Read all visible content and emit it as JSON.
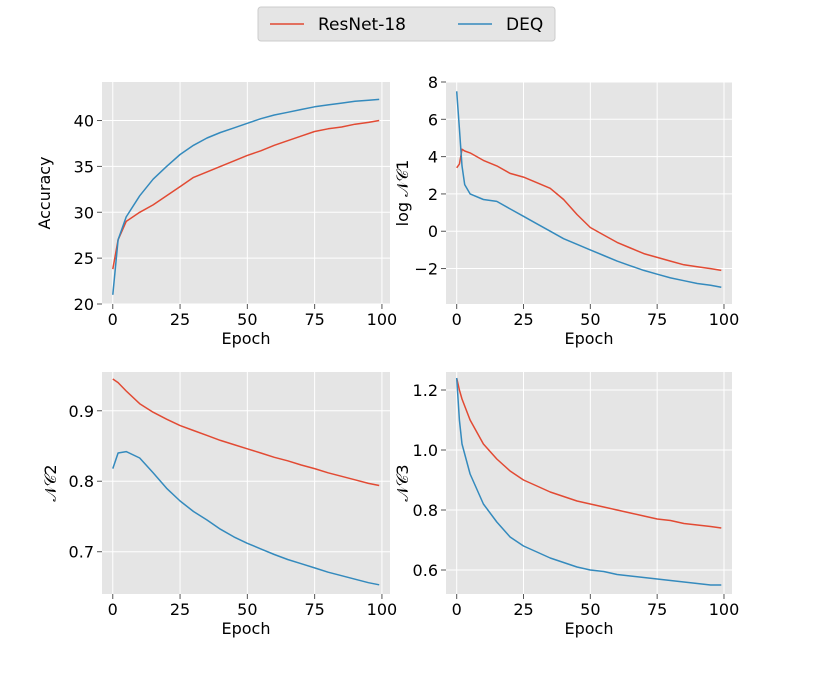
{
  "legend": {
    "entries": [
      {
        "label": "ResNet-18",
        "color": "#E24A33"
      },
      {
        "label": "DEQ",
        "color": "#348ABD"
      }
    ]
  },
  "chart_data": [
    {
      "type": "line",
      "xlabel": "Epoch",
      "ylabel": "Accuracy",
      "xlim": [
        -4,
        103
      ],
      "ylim": [
        20,
        44.2
      ],
      "xticks": [
        0,
        25,
        50,
        75,
        100
      ],
      "yticks": [
        20,
        25,
        30,
        35,
        40
      ],
      "xtick_labels": [
        "0",
        "25",
        "50",
        "75",
        "100"
      ],
      "ytick_labels": [
        "20",
        "25",
        "30",
        "35",
        "40"
      ],
      "grid": true,
      "x": [
        0,
        2,
        5,
        10,
        15,
        20,
        25,
        30,
        35,
        40,
        45,
        50,
        55,
        60,
        65,
        70,
        75,
        80,
        85,
        90,
        95,
        99
      ],
      "series": [
        {
          "name": "ResNet-18",
          "values": [
            23.8,
            27.0,
            29.0,
            30.0,
            30.8,
            31.8,
            32.8,
            33.8,
            34.4,
            35.0,
            35.6,
            36.2,
            36.7,
            37.3,
            37.8,
            38.3,
            38.8,
            39.1,
            39.3,
            39.6,
            39.8,
            40.0
          ]
        },
        {
          "name": "DEQ",
          "values": [
            21.0,
            27.0,
            29.5,
            31.8,
            33.6,
            35.0,
            36.3,
            37.3,
            38.1,
            38.7,
            39.2,
            39.7,
            40.2,
            40.6,
            40.9,
            41.2,
            41.5,
            41.7,
            41.9,
            42.1,
            42.2,
            42.3
          ]
        }
      ]
    },
    {
      "type": "line",
      "xlabel": "Epoch",
      "ylabel": "log 𝒩𝒞1",
      "xlim": [
        -4,
        103
      ],
      "ylim": [
        -3.9,
        8.0
      ],
      "xticks": [
        0,
        25,
        50,
        75,
        100
      ],
      "yticks": [
        -2,
        0,
        2,
        4,
        6,
        8
      ],
      "xtick_labels": [
        "0",
        "25",
        "50",
        "75",
        "100"
      ],
      "ytick_labels": [
        "−2",
        "0",
        "2",
        "4",
        "6",
        "8"
      ],
      "grid": true,
      "x": [
        0,
        1,
        2,
        3,
        5,
        10,
        15,
        20,
        25,
        30,
        35,
        40,
        45,
        50,
        55,
        60,
        65,
        70,
        75,
        80,
        85,
        90,
        95,
        99
      ],
      "series": [
        {
          "name": "ResNet-18",
          "values": [
            3.4,
            3.6,
            4.4,
            4.3,
            4.2,
            3.8,
            3.5,
            3.1,
            2.9,
            2.6,
            2.3,
            1.7,
            0.9,
            0.2,
            -0.2,
            -0.6,
            -0.9,
            -1.2,
            -1.4,
            -1.6,
            -1.8,
            -1.9,
            -2.0,
            -2.1
          ]
        },
        {
          "name": "DEQ",
          "values": [
            7.5,
            5.5,
            3.5,
            2.5,
            2.0,
            1.7,
            1.6,
            1.2,
            0.8,
            0.4,
            0.0,
            -0.4,
            -0.7,
            -1.0,
            -1.3,
            -1.6,
            -1.85,
            -2.1,
            -2.3,
            -2.5,
            -2.65,
            -2.8,
            -2.9,
            -3.0
          ]
        }
      ]
    },
    {
      "type": "line",
      "xlabel": "Epoch",
      "ylabel": "𝒩𝒞2",
      "xlim": [
        -4,
        103
      ],
      "ylim": [
        0.64,
        0.955
      ],
      "xticks": [
        0,
        25,
        50,
        75,
        100
      ],
      "yticks": [
        0.7,
        0.8,
        0.9
      ],
      "xtick_labels": [
        "0",
        "25",
        "50",
        "75",
        "100"
      ],
      "ytick_labels": [
        "0.7",
        "0.8",
        "0.9"
      ],
      "grid": true,
      "x": [
        0,
        2,
        5,
        10,
        15,
        20,
        25,
        30,
        35,
        40,
        45,
        50,
        55,
        60,
        65,
        70,
        75,
        80,
        85,
        90,
        95,
        99
      ],
      "series": [
        {
          "name": "ResNet-18",
          "values": [
            0.945,
            0.94,
            0.928,
            0.91,
            0.898,
            0.888,
            0.879,
            0.872,
            0.865,
            0.858,
            0.852,
            0.846,
            0.84,
            0.834,
            0.829,
            0.823,
            0.818,
            0.812,
            0.807,
            0.802,
            0.797,
            0.794
          ]
        },
        {
          "name": "DEQ",
          "values": [
            0.818,
            0.84,
            0.842,
            0.833,
            0.812,
            0.79,
            0.772,
            0.757,
            0.745,
            0.732,
            0.721,
            0.712,
            0.704,
            0.696,
            0.689,
            0.683,
            0.677,
            0.671,
            0.666,
            0.661,
            0.656,
            0.653
          ]
        }
      ]
    },
    {
      "type": "line",
      "xlabel": "Epoch",
      "ylabel": "𝒩𝒞3",
      "xlim": [
        -4,
        103
      ],
      "ylim": [
        0.52,
        1.26
      ],
      "xticks": [
        0,
        25,
        50,
        75,
        100
      ],
      "yticks": [
        0.6,
        0.8,
        1.0,
        1.2
      ],
      "xtick_labels": [
        "0",
        "25",
        "50",
        "75",
        "100"
      ],
      "ytick_labels": [
        "0.6",
        "0.8",
        "1.0",
        "1.2"
      ],
      "grid": true,
      "x": [
        0,
        1,
        2,
        5,
        10,
        15,
        20,
        25,
        30,
        35,
        40,
        45,
        50,
        55,
        60,
        65,
        70,
        75,
        80,
        85,
        90,
        95,
        99
      ],
      "series": [
        {
          "name": "ResNet-18",
          "values": [
            1.24,
            1.2,
            1.17,
            1.1,
            1.02,
            0.97,
            0.93,
            0.9,
            0.88,
            0.86,
            0.845,
            0.83,
            0.82,
            0.81,
            0.8,
            0.79,
            0.78,
            0.77,
            0.765,
            0.755,
            0.75,
            0.745,
            0.74
          ]
        },
        {
          "name": "DEQ",
          "values": [
            1.24,
            1.1,
            1.02,
            0.92,
            0.82,
            0.76,
            0.71,
            0.68,
            0.66,
            0.64,
            0.625,
            0.61,
            0.6,
            0.595,
            0.585,
            0.58,
            0.575,
            0.57,
            0.565,
            0.56,
            0.555,
            0.55,
            0.55
          ]
        }
      ]
    }
  ]
}
